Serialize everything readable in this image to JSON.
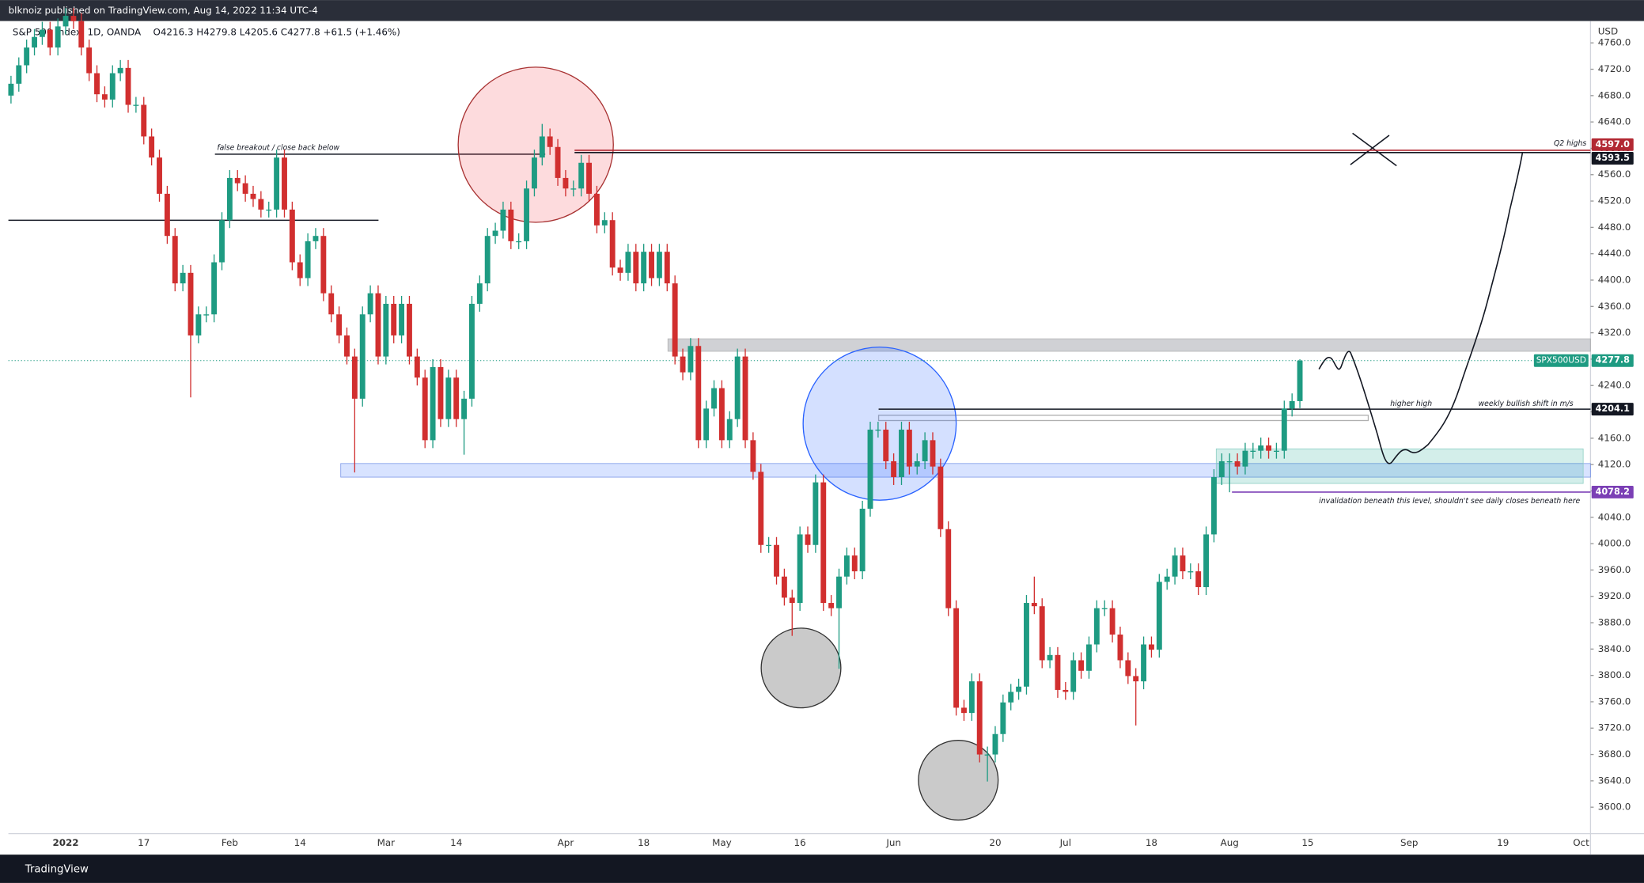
{
  "publisher_line": "blknoiz published on TradingView.com, Aug 14, 2022 11:34 UTC-4",
  "footer_brand": "TradingView",
  "chart_data": {
    "type": "candlestick",
    "title": "S&P 500 Index, 1D, OANDA",
    "subtitle": "O4216.3 H4279.8 L4205.6 C4277.8 +61.5 (+1.46%)",
    "y_label": "USD",
    "up_color": "#1e9b82",
    "down_color": "#d12f2f",
    "grid": false,
    "ylim": [
      3563,
      4790
    ],
    "yticks": [
      {
        "value": 3600,
        "label": "3600.0"
      },
      {
        "value": 3640,
        "label": "3640.0"
      },
      {
        "value": 3680,
        "label": "3680.0"
      },
      {
        "value": 3720,
        "label": "3720.0"
      },
      {
        "value": 3760,
        "label": "3760.0"
      },
      {
        "value": 3800,
        "label": "3800.0"
      },
      {
        "value": 3840,
        "label": "3840.0"
      },
      {
        "value": 3880,
        "label": "3880.0"
      },
      {
        "value": 3920,
        "label": "3920.0"
      },
      {
        "value": 3960,
        "label": "3960.0"
      },
      {
        "value": 4000,
        "label": "4000.0"
      },
      {
        "value": 4040,
        "label": "4040.0"
      },
      {
        "value": 4080,
        "label": "4080.0"
      },
      {
        "value": 4120,
        "label": "4120.0"
      },
      {
        "value": 4160,
        "label": "4160.0"
      },
      {
        "value": 4200,
        "label": "4200.0"
      },
      {
        "value": 4240,
        "label": "4240.0"
      },
      {
        "value": 4280,
        "label": "4280.0"
      },
      {
        "value": 4320,
        "label": "4320.0"
      },
      {
        "value": 4360,
        "label": "4360.0"
      },
      {
        "value": 4400,
        "label": "4400.0"
      },
      {
        "value": 4440,
        "label": "4440.0"
      },
      {
        "value": 4480,
        "label": "4480.0"
      },
      {
        "value": 4520,
        "label": "4520.0"
      },
      {
        "value": 4560,
        "label": "4560.0"
      },
      {
        "value": 4600,
        "label": "4600.0"
      },
      {
        "value": 4640,
        "label": "4640.0"
      },
      {
        "value": 4680,
        "label": "4680.0"
      },
      {
        "value": 4720,
        "label": "4720.0"
      },
      {
        "value": 4760,
        "label": "4760.0"
      }
    ],
    "categories": [
      null,
      null,
      null,
      null,
      null,
      null,
      null,
      "2022",
      null,
      null,
      null,
      null,
      null,
      null,
      null,
      null,
      null,
      "17",
      null,
      null,
      null,
      null,
      null,
      null,
      null,
      null,
      null,
      null,
      "Feb",
      null,
      null,
      null,
      null,
      null,
      null,
      null,
      null,
      "14",
      null,
      null,
      null,
      null,
      null,
      null,
      null,
      null,
      null,
      null,
      "Mar",
      null,
      null,
      null,
      null,
      null,
      null,
      null,
      null,
      "14",
      null,
      null,
      null,
      null,
      null,
      null,
      null,
      null,
      null,
      null,
      null,
      null,
      null,
      "Apr",
      null,
      null,
      null,
      null,
      null,
      null,
      null,
      null,
      null,
      "18",
      null,
      null,
      null,
      null,
      null,
      null,
      null,
      null,
      null,
      "May",
      null,
      null,
      null,
      null,
      null,
      null,
      null,
      null,
      null,
      "16",
      null,
      null,
      null,
      null,
      null,
      null,
      null,
      null,
      null,
      null,
      null,
      "Jun",
      null,
      null,
      null,
      null,
      null,
      null,
      null,
      null,
      null,
      null,
      null,
      null,
      "20",
      null,
      null,
      null,
      null,
      null,
      null,
      null,
      null,
      "Jul",
      null,
      null,
      null,
      null,
      null,
      null,
      null,
      null,
      null,
      null,
      "18",
      null,
      null,
      null,
      null,
      null,
      null,
      null,
      null,
      null,
      "Aug",
      null,
      null,
      null,
      null,
      null,
      null,
      null,
      null,
      null,
      "15",
      null,
      null,
      null,
      null,
      null,
      null,
      null,
      null,
      null,
      null,
      null,
      null,
      "Sep",
      null,
      null,
      null,
      null,
      null,
      null,
      null,
      null,
      null,
      null,
      null,
      "19",
      null,
      null,
      null,
      null,
      null,
      null,
      null,
      null,
      null,
      "Oct"
    ],
    "open": [
      4680,
      4698,
      4726,
      4753,
      4769,
      4780,
      4753,
      4785,
      4801,
      4793,
      4753,
      4714,
      4682,
      4674,
      4714,
      4722,
      4666,
      4666,
      4618,
      4586,
      4531,
      4467,
      4395,
      4411,
      4316,
      4348,
      4348,
      4427,
      4491,
      4555,
      4547,
      4531,
      4523,
      4507,
      4507,
      4586,
      4507,
      4427,
      4403,
      4459,
      4467,
      4380,
      4348,
      4316,
      4284,
      4220,
      4348,
      4380,
      4284,
      4364,
      4316,
      4364,
      4284,
      4252,
      4157,
      4268,
      4189,
      4252,
      4189,
      4220,
      4364,
      4395,
      4467,
      4475,
      4507,
      4459,
      4459,
      4539,
      4586,
      4618,
      4602,
      4555,
      4539,
      4539,
      4578,
      4531,
      4483,
      4491,
      4419,
      4411,
      4443,
      4395,
      4443,
      4403,
      4443,
      4395,
      4284,
      4260,
      4300,
      4157,
      4205,
      4236,
      4157,
      4189,
      4284,
      4157,
      4109,
      3998,
      3998,
      3950,
      3918,
      3910,
      4014,
      3998,
      4093,
      3910,
      3902,
      3950,
      3982,
      3958,
      4053,
      4173,
      4173,
      4125,
      4101,
      4173,
      4117,
      4125,
      4157,
      4117,
      4022,
      3902,
      3751,
      3743,
      3791,
      3680,
      3680,
      3711,
      3759,
      3775,
      3783,
      3910,
      3905,
      3823,
      3831,
      3778,
      3775,
      3823,
      3807,
      3847,
      3902,
      3902,
      3862,
      3823,
      3799,
      3791,
      3847,
      3839,
      3942,
      3950,
      3982,
      3958,
      3958,
      3934,
      4014,
      4101,
      4125,
      4125,
      4117,
      4141,
      4141,
      4149,
      4141,
      4141,
      4205,
      4216.3,
      null,
      null,
      null,
      null,
      null,
      null,
      null,
      null,
      null,
      null,
      null,
      null,
      null,
      null,
      null,
      null,
      null,
      null,
      null,
      null,
      null,
      null,
      null,
      null,
      null,
      null,
      null,
      null,
      null,
      null,
      null,
      null,
      null,
      null,
      null,
      null
    ],
    "high": [
      4710,
      4738,
      4765,
      4781,
      4792,
      4792,
      4797,
      4813,
      4813,
      4805,
      4765,
      4726,
      4694,
      4726,
      4734,
      4734,
      4678,
      4678,
      4630,
      4598,
      4543,
      4479,
      4423,
      4423,
      4360,
      4360,
      4439,
      4503,
      4567,
      4567,
      4559,
      4543,
      4535,
      4519,
      4598,
      4598,
      4519,
      4439,
      4471,
      4479,
      4479,
      4392,
      4360,
      4328,
      4296,
      4360,
      4392,
      4392,
      4376,
      4376,
      4376,
      4376,
      4296,
      4264,
      4280,
      4280,
      4264,
      4264,
      4232,
      4376,
      4407,
      4479,
      4487,
      4519,
      4519,
      4471,
      4551,
      4598,
      4637,
      4630,
      4614,
      4567,
      4551,
      4590,
      4590,
      4543,
      4503,
      4503,
      4431,
      4455,
      4455,
      4455,
      4455,
      4455,
      4455,
      4407,
      4296,
      4312,
      4312,
      4217,
      4248,
      4248,
      4201,
      4296,
      4296,
      4169,
      4121,
      4010,
      4010,
      3962,
      3930,
      4026,
      4026,
      4105,
      4105,
      3922,
      3962,
      3994,
      3994,
      4065,
      4185,
      4185,
      4185,
      4137,
      4185,
      4185,
      4137,
      4169,
      4169,
      4129,
      4034,
      3914,
      3763,
      3803,
      3803,
      3692,
      3723,
      3771,
      3787,
      3795,
      3922,
      3950,
      3917,
      3843,
      3843,
      3790,
      3835,
      3835,
      3859,
      3914,
      3914,
      3914,
      3874,
      3835,
      3811,
      3859,
      3859,
      3954,
      3962,
      3994,
      3994,
      3970,
      3970,
      4026,
      4113,
      4137,
      4137,
      4137,
      4153,
      4153,
      4161,
      4161,
      4153,
      4217,
      4228,
      4279.8,
      null,
      null,
      null,
      null,
      null,
      null,
      null,
      null,
      null,
      null,
      null,
      null,
      null,
      null,
      null,
      null,
      null,
      null,
      null,
      null,
      null,
      null,
      null,
      null,
      null,
      null,
      null,
      null,
      null,
      null,
      null,
      null,
      null,
      null,
      null,
      null
    ],
    "low": [
      4668,
      4686,
      4714,
      4741,
      4757,
      4741,
      4741,
      4773,
      4781,
      4741,
      4702,
      4670,
      4662,
      4662,
      4702,
      4654,
      4654,
      4606,
      4574,
      4519,
      4455,
      4383,
      4383,
      4222,
      4304,
      4336,
      4336,
      4415,
      4479,
      4535,
      4519,
      4511,
      4495,
      4495,
      4495,
      4495,
      4415,
      4391,
      4391,
      4447,
      4368,
      4336,
      4304,
      4272,
      4108,
      4208,
      4336,
      4272,
      4272,
      4304,
      4304,
      4272,
      4240,
      4145,
      4145,
      4177,
      4177,
      4177,
      4135,
      4208,
      4352,
      4383,
      4455,
      4463,
      4447,
      4447,
      4447,
      4527,
      4574,
      4590,
      4543,
      4527,
      4527,
      4527,
      4519,
      4471,
      4471,
      4407,
      4399,
      4399,
      4383,
      4383,
      4391,
      4391,
      4383,
      4272,
      4248,
      4248,
      4145,
      4145,
      4193,
      4145,
      4145,
      4177,
      4145,
      4097,
      3986,
      3986,
      3938,
      3906,
      3860,
      3898,
      3986,
      3986,
      3898,
      3890,
      3810,
      3938,
      3946,
      3946,
      4041,
      4161,
      4113,
      4089,
      4089,
      4105,
      4105,
      4113,
      4105,
      4010,
      3890,
      3739,
      3731,
      3731,
      3668,
      3639,
      3668,
      3699,
      3747,
      3763,
      3771,
      3893,
      3811,
      3811,
      3766,
      3763,
      3763,
      3795,
      3795,
      3835,
      3890,
      3850,
      3811,
      3787,
      3724,
      3779,
      3827,
      3827,
      3930,
      3938,
      3946,
      3946,
      3922,
      3922,
      4002,
      4089,
      4078,
      4105,
      4105,
      4129,
      4129,
      4129,
      4129,
      4129,
      4193,
      4205.6,
      null,
      null,
      null,
      null,
      null,
      null,
      null,
      null,
      null,
      null,
      null,
      null,
      null,
      null,
      null,
      null,
      null,
      null,
      null,
      null,
      null,
      null,
      null,
      null,
      null,
      null,
      null,
      null,
      null,
      null,
      null,
      null,
      null,
      null,
      null,
      null
    ],
    "close": [
      4698,
      4726,
      4753,
      4769,
      4780,
      4753,
      4785,
      4801,
      4793,
      4753,
      4714,
      4682,
      4674,
      4714,
      4722,
      4666,
      4666,
      4618,
      4586,
      4531,
      4467,
      4395,
      4411,
      4316,
      4348,
      4348,
      4427,
      4491,
      4555,
      4547,
      4531,
      4523,
      4507,
      4507,
      4586,
      4507,
      4427,
      4403,
      4459,
      4467,
      4380,
      4348,
      4316,
      4284,
      4220,
      4348,
      4380,
      4284,
      4364,
      4316,
      4364,
      4284,
      4252,
      4157,
      4268,
      4189,
      4252,
      4189,
      4220,
      4364,
      4395,
      4467,
      4475,
      4507,
      4459,
      4459,
      4539,
      4586,
      4618,
      4602,
      4555,
      4539,
      4539,
      4578,
      4531,
      4483,
      4491,
      4419,
      4411,
      4443,
      4395,
      4443,
      4403,
      4443,
      4395,
      4284,
      4260,
      4300,
      4157,
      4205,
      4236,
      4157,
      4189,
      4284,
      4157,
      4109,
      3998,
      3998,
      3950,
      3918,
      3910,
      4014,
      3998,
      4093,
      3910,
      3902,
      3950,
      3982,
      3958,
      4053,
      4173,
      4173,
      4125,
      4101,
      4173,
      4117,
      4125,
      4157,
      4117,
      4022,
      3902,
      3751,
      3743,
      3791,
      3680,
      3680,
      3711,
      3759,
      3775,
      3783,
      3910,
      3905,
      3823,
      3831,
      3778,
      3775,
      3823,
      3807,
      3847,
      3902,
      3902,
      3862,
      3823,
      3799,
      3791,
      3847,
      3839,
      3942,
      3950,
      3982,
      3958,
      3958,
      3934,
      4014,
      4101,
      4125,
      4125,
      4117,
      4141,
      4141,
      4149,
      4141,
      4141,
      4205,
      4216.3,
      4277.8,
      null,
      null,
      null,
      null,
      null,
      null,
      null,
      null,
      null,
      null,
      null,
      null,
      null,
      null,
      null,
      null,
      null,
      null,
      null,
      null,
      null,
      null,
      null,
      null,
      null,
      null,
      null,
      null,
      null,
      null,
      null,
      null,
      null,
      null,
      null,
      null
    ],
    "levels": [
      {
        "value": 4597,
        "label": "4597.0",
        "color": "#b22833"
      },
      {
        "value": 4593.5,
        "color": "#131722"
      },
      {
        "value": 4277.8,
        "name": "SPX500USD",
        "color": "#1e9b82"
      },
      {
        "value": 4204.1,
        "color": "#131722"
      },
      {
        "value": 4078.2,
        "color": "#7b3fb5"
      }
    ],
    "annotations": [
      "false breakout / close back below",
      "Q2 highs",
      "higher high",
      "weekly bullish shift in m/s",
      "invalidation beneath this level, shouldn't see daily closes beneath here"
    ]
  }
}
